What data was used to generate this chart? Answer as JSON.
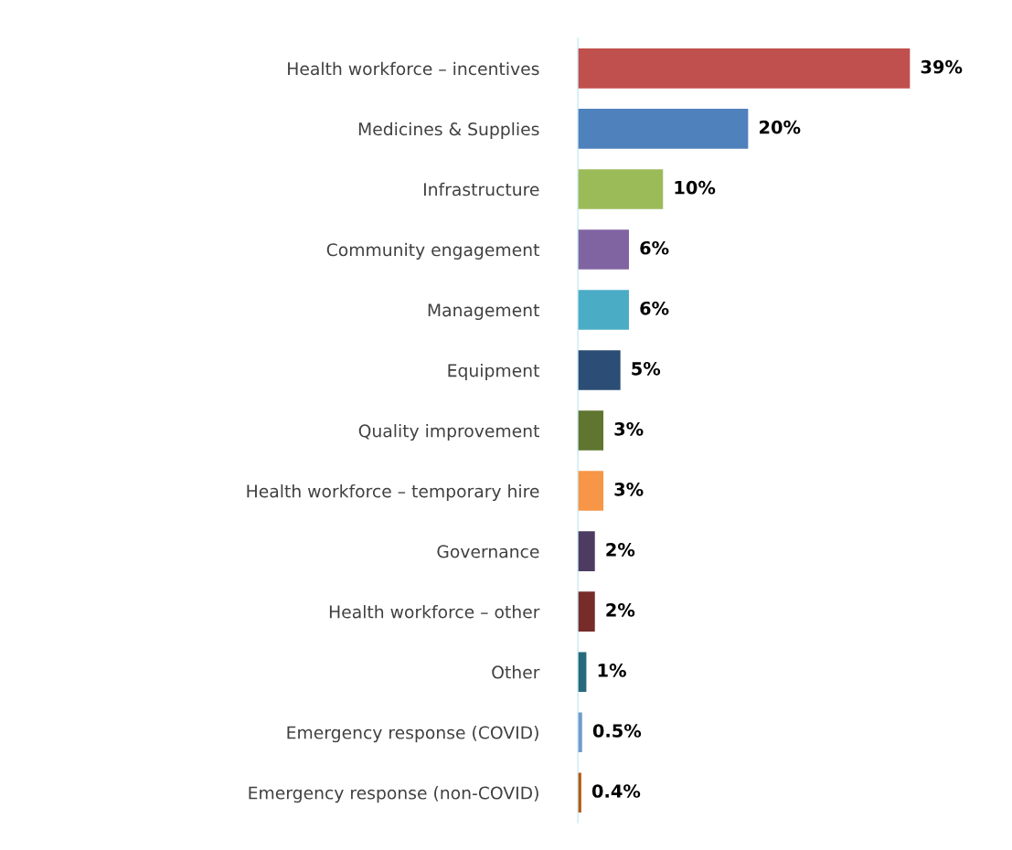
{
  "chart_data": {
    "type": "bar",
    "orientation": "horizontal",
    "categories": [
      "Health workforce – incentives",
      "Medicines & Supplies",
      "Infrastructure",
      "Community engagement",
      "Management",
      "Equipment",
      "Quality improvement",
      "Health workforce – temporary hire",
      "Governance",
      "Health workforce – other",
      "Other",
      "Emergency response (COVID)",
      "Emergency response (non-COVID)"
    ],
    "values": [
      39,
      20,
      10,
      6,
      6,
      5,
      3,
      3,
      2,
      2,
      1,
      0.5,
      0.4
    ],
    "colors": [
      "#c0504d",
      "#4f81bd",
      "#9bbb59",
      "#8064a2",
      "#4bacc6",
      "#2c4d75",
      "#5f7530",
      "#f79646",
      "#4d3b62",
      "#772c2a",
      "#276a7c",
      "#729aca",
      "#b65708"
    ],
    "value_labels": [
      "39%",
      "20%",
      "10%",
      "6%",
      "6%",
      "5%",
      "3%",
      "3%",
      "2%",
      "2%",
      "1%",
      "0.5%",
      "0.4%"
    ],
    "grid": false,
    "legend": false,
    "tick_labels": "y"
  }
}
